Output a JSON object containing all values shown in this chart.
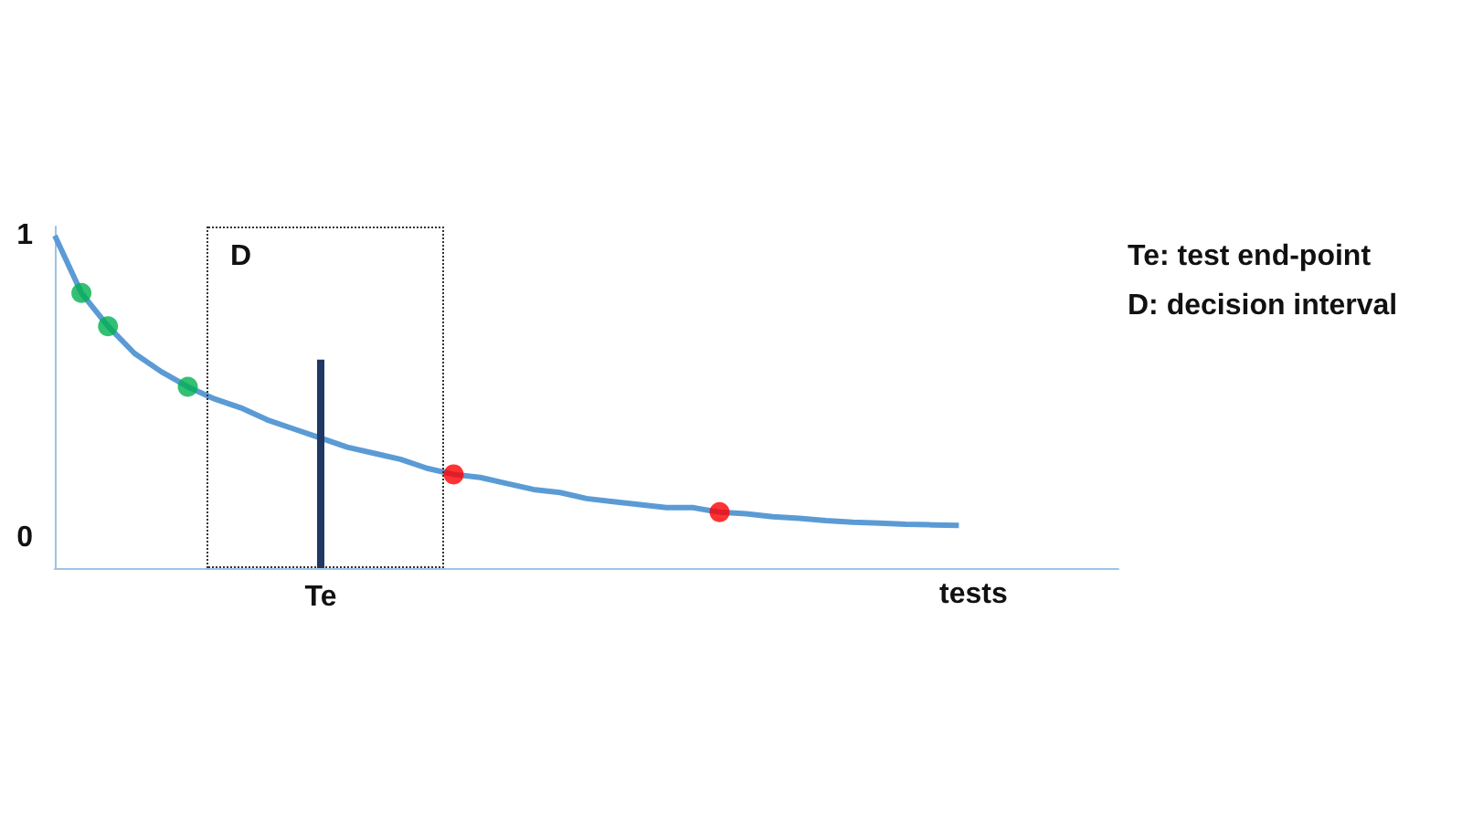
{
  "chart_data": {
    "type": "line",
    "xlabel": "tests",
    "ylim": [
      -0.1,
      1.03
    ],
    "yticks": [
      0,
      1
    ],
    "grid": false,
    "categories": [
      null,
      null,
      null,
      null,
      null,
      null,
      null,
      null,
      null,
      null,
      "Te",
      null,
      null,
      null,
      null,
      null,
      null,
      null,
      null,
      null,
      null,
      null,
      null,
      null,
      null,
      null,
      null,
      null,
      null,
      null,
      null,
      null,
      null,
      null,
      null,
      null,
      null,
      null,
      null,
      null,
      null
    ],
    "series": [
      {
        "color": "#5b9bd5",
        "values": [
          1.0,
          0.81,
          0.7,
          0.61,
          0.55,
          0.5,
          0.46,
          0.43,
          0.39,
          0.36,
          0.33,
          0.3,
          0.28,
          0.26,
          0.23,
          0.21,
          0.2,
          0.18,
          0.16,
          0.15,
          0.13,
          0.12,
          0.11,
          0.1,
          0.1,
          0.085,
          0.08,
          0.07,
          0.065,
          0.057,
          0.052,
          0.049,
          0.045,
          0.043,
          0.041,
          null,
          null,
          null,
          null,
          null,
          null
        ]
      },
      {
        "type": "scatter",
        "color": "#00b050",
        "values": [
          null,
          0.81,
          0.7,
          null,
          null,
          0.5,
          null,
          null,
          null,
          null,
          null,
          null,
          null,
          null,
          null,
          null,
          null,
          null,
          null,
          null,
          null,
          null,
          null,
          null,
          null,
          null,
          null,
          null,
          null,
          null,
          null,
          null,
          null,
          null,
          null,
          null,
          null,
          null,
          null,
          null,
          null
        ]
      },
      {
        "type": "scatter",
        "color": "#ff0000",
        "values": [
          null,
          null,
          null,
          null,
          null,
          null,
          null,
          null,
          null,
          null,
          null,
          null,
          null,
          null,
          null,
          0.21,
          null,
          null,
          null,
          null,
          null,
          null,
          null,
          null,
          null,
          0.085,
          null,
          null,
          null,
          null,
          null,
          null,
          null,
          null,
          null,
          null,
          null,
          null,
          null,
          null,
          null
        ]
      },
      {
        "color": "#1f3864",
        "x": [
          "Te",
          "Te"
        ],
        "values": [
          -0.1,
          0.59
        ]
      }
    ],
    "annotations": [
      "D",
      "Te: test end-point",
      "D: decision interval"
    ]
  }
}
